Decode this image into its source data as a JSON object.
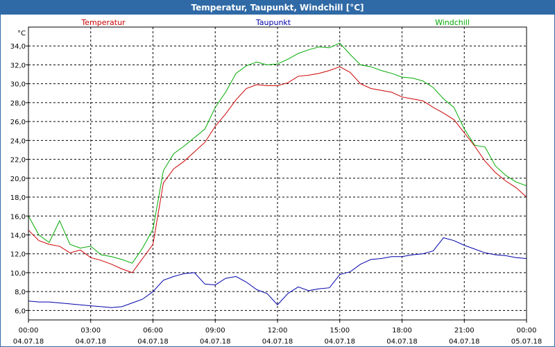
{
  "chart_data": {
    "type": "line",
    "title": "Temperatur, Taupunkt, Windchill [°C]",
    "ylabel": "°C",
    "ylim": [
      5,
      36
    ],
    "yticks": [
      "6,0",
      "8,0",
      "10,0",
      "12,0",
      "14,0",
      "16,0",
      "18,0",
      "20,0",
      "22,0",
      "24,0",
      "26,0",
      "28,0",
      "30,0",
      "32,0",
      "34,0"
    ],
    "ytick_values": [
      6,
      8,
      10,
      12,
      14,
      16,
      18,
      20,
      22,
      24,
      26,
      28,
      30,
      32,
      34
    ],
    "xlim": [
      0,
      24
    ],
    "xticks": [
      {
        "time": "00:00",
        "date": "04.07.18"
      },
      {
        "time": "03:00",
        "date": "04.07.18"
      },
      {
        "time": "06:00",
        "date": "04.07.18"
      },
      {
        "time": "09:00",
        "date": "04.07.18"
      },
      {
        "time": "12:00",
        "date": "04.07.18"
      },
      {
        "time": "15:00",
        "date": "04.07.18"
      },
      {
        "time": "18:00",
        "date": "04.07.18"
      },
      {
        "time": "21:00",
        "date": "04.07.18"
      },
      {
        "time": "00:00",
        "date": "05.07.18"
      }
    ],
    "grid": true,
    "series": [
      {
        "name": "Temperatur",
        "color": "#cc0000",
        "x": [
          0,
          0.5,
          1,
          1.5,
          2,
          2.5,
          3,
          3.5,
          4,
          4.5,
          5,
          5.5,
          6,
          6.5,
          7,
          7.5,
          8,
          8.5,
          9,
          9.5,
          10,
          10.5,
          11,
          11.5,
          12,
          12.5,
          13,
          13.5,
          14,
          14.5,
          15,
          15.5,
          16,
          16.5,
          17,
          17.5,
          18,
          18.5,
          19,
          19.5,
          20,
          20.5,
          21,
          21.5,
          22,
          22.5,
          23,
          23.5,
          24
        ],
        "values": [
          14.5,
          13.4,
          13.0,
          12.8,
          12.1,
          12.4,
          11.6,
          11.3,
          10.9,
          10.4,
          10.0,
          11.5,
          13.0,
          19.5,
          21.0,
          21.8,
          22.8,
          23.8,
          25.5,
          26.8,
          28.3,
          29.5,
          29.9,
          29.8,
          29.8,
          30.1,
          30.8,
          30.9,
          31.1,
          31.4,
          31.8,
          31.2,
          30.0,
          29.5,
          29.3,
          29.1,
          28.6,
          28.4,
          28.2,
          27.5,
          26.9,
          26.2,
          24.8,
          23.4,
          21.8,
          20.6,
          19.7,
          19.0,
          18.0
        ]
      },
      {
        "name": "Taupunkt",
        "color": "#0000aa",
        "x": [
          0,
          0.5,
          1,
          1.5,
          2,
          2.5,
          3,
          3.5,
          4,
          4.5,
          5,
          5.5,
          6,
          6.5,
          7,
          7.5,
          8,
          8.5,
          9,
          9.5,
          10,
          10.5,
          11,
          11.5,
          12,
          12.5,
          13,
          13.5,
          14,
          14.5,
          15,
          15.5,
          16,
          16.5,
          17,
          17.5,
          18,
          18.5,
          19,
          19.5,
          20,
          20.5,
          21,
          21.5,
          22,
          22.5,
          23,
          23.5,
          24
        ],
        "values": [
          7.0,
          6.9,
          6.9,
          6.8,
          6.7,
          6.6,
          6.5,
          6.4,
          6.3,
          6.4,
          6.8,
          7.2,
          8.0,
          9.2,
          9.6,
          9.9,
          10.0,
          8.8,
          8.7,
          9.4,
          9.6,
          9.0,
          8.2,
          7.8,
          6.6,
          7.8,
          8.5,
          8.1,
          8.3,
          8.4,
          9.8,
          10.1,
          10.9,
          11.4,
          11.5,
          11.7,
          11.7,
          11.9,
          12.0,
          12.3,
          13.7,
          13.4,
          12.9,
          12.5,
          12.1,
          11.9,
          11.8,
          11.6,
          11.5
        ]
      },
      {
        "name": "Windchill",
        "color": "#00aa00",
        "x": [
          0,
          0.5,
          1,
          1.5,
          2,
          2.5,
          3,
          3.5,
          4,
          4.5,
          5,
          5.5,
          6,
          6.5,
          7,
          7.5,
          8,
          8.5,
          9,
          9.5,
          10,
          10.5,
          11,
          11.5,
          12,
          12.5,
          13,
          13.5,
          14,
          14.5,
          15,
          15.5,
          16,
          16.5,
          17,
          17.5,
          18,
          18.5,
          19,
          19.5,
          20,
          20.5,
          21,
          21.5,
          22,
          22.5,
          23,
          23.5,
          24
        ],
        "values": [
          16.0,
          14.0,
          13.2,
          15.5,
          13.0,
          12.6,
          12.8,
          11.9,
          11.7,
          11.4,
          11.0,
          12.6,
          14.6,
          20.8,
          22.6,
          23.4,
          24.3,
          25.2,
          27.5,
          29.1,
          31.1,
          31.9,
          32.3,
          32.0,
          32.1,
          32.6,
          33.2,
          33.6,
          33.9,
          33.8,
          34.3,
          33.1,
          32.0,
          31.8,
          31.4,
          31.1,
          30.7,
          30.6,
          30.3,
          29.6,
          28.4,
          27.5,
          25.2,
          23.5,
          23.3,
          21.3,
          20.3,
          19.6,
          19.2
        ]
      }
    ]
  }
}
